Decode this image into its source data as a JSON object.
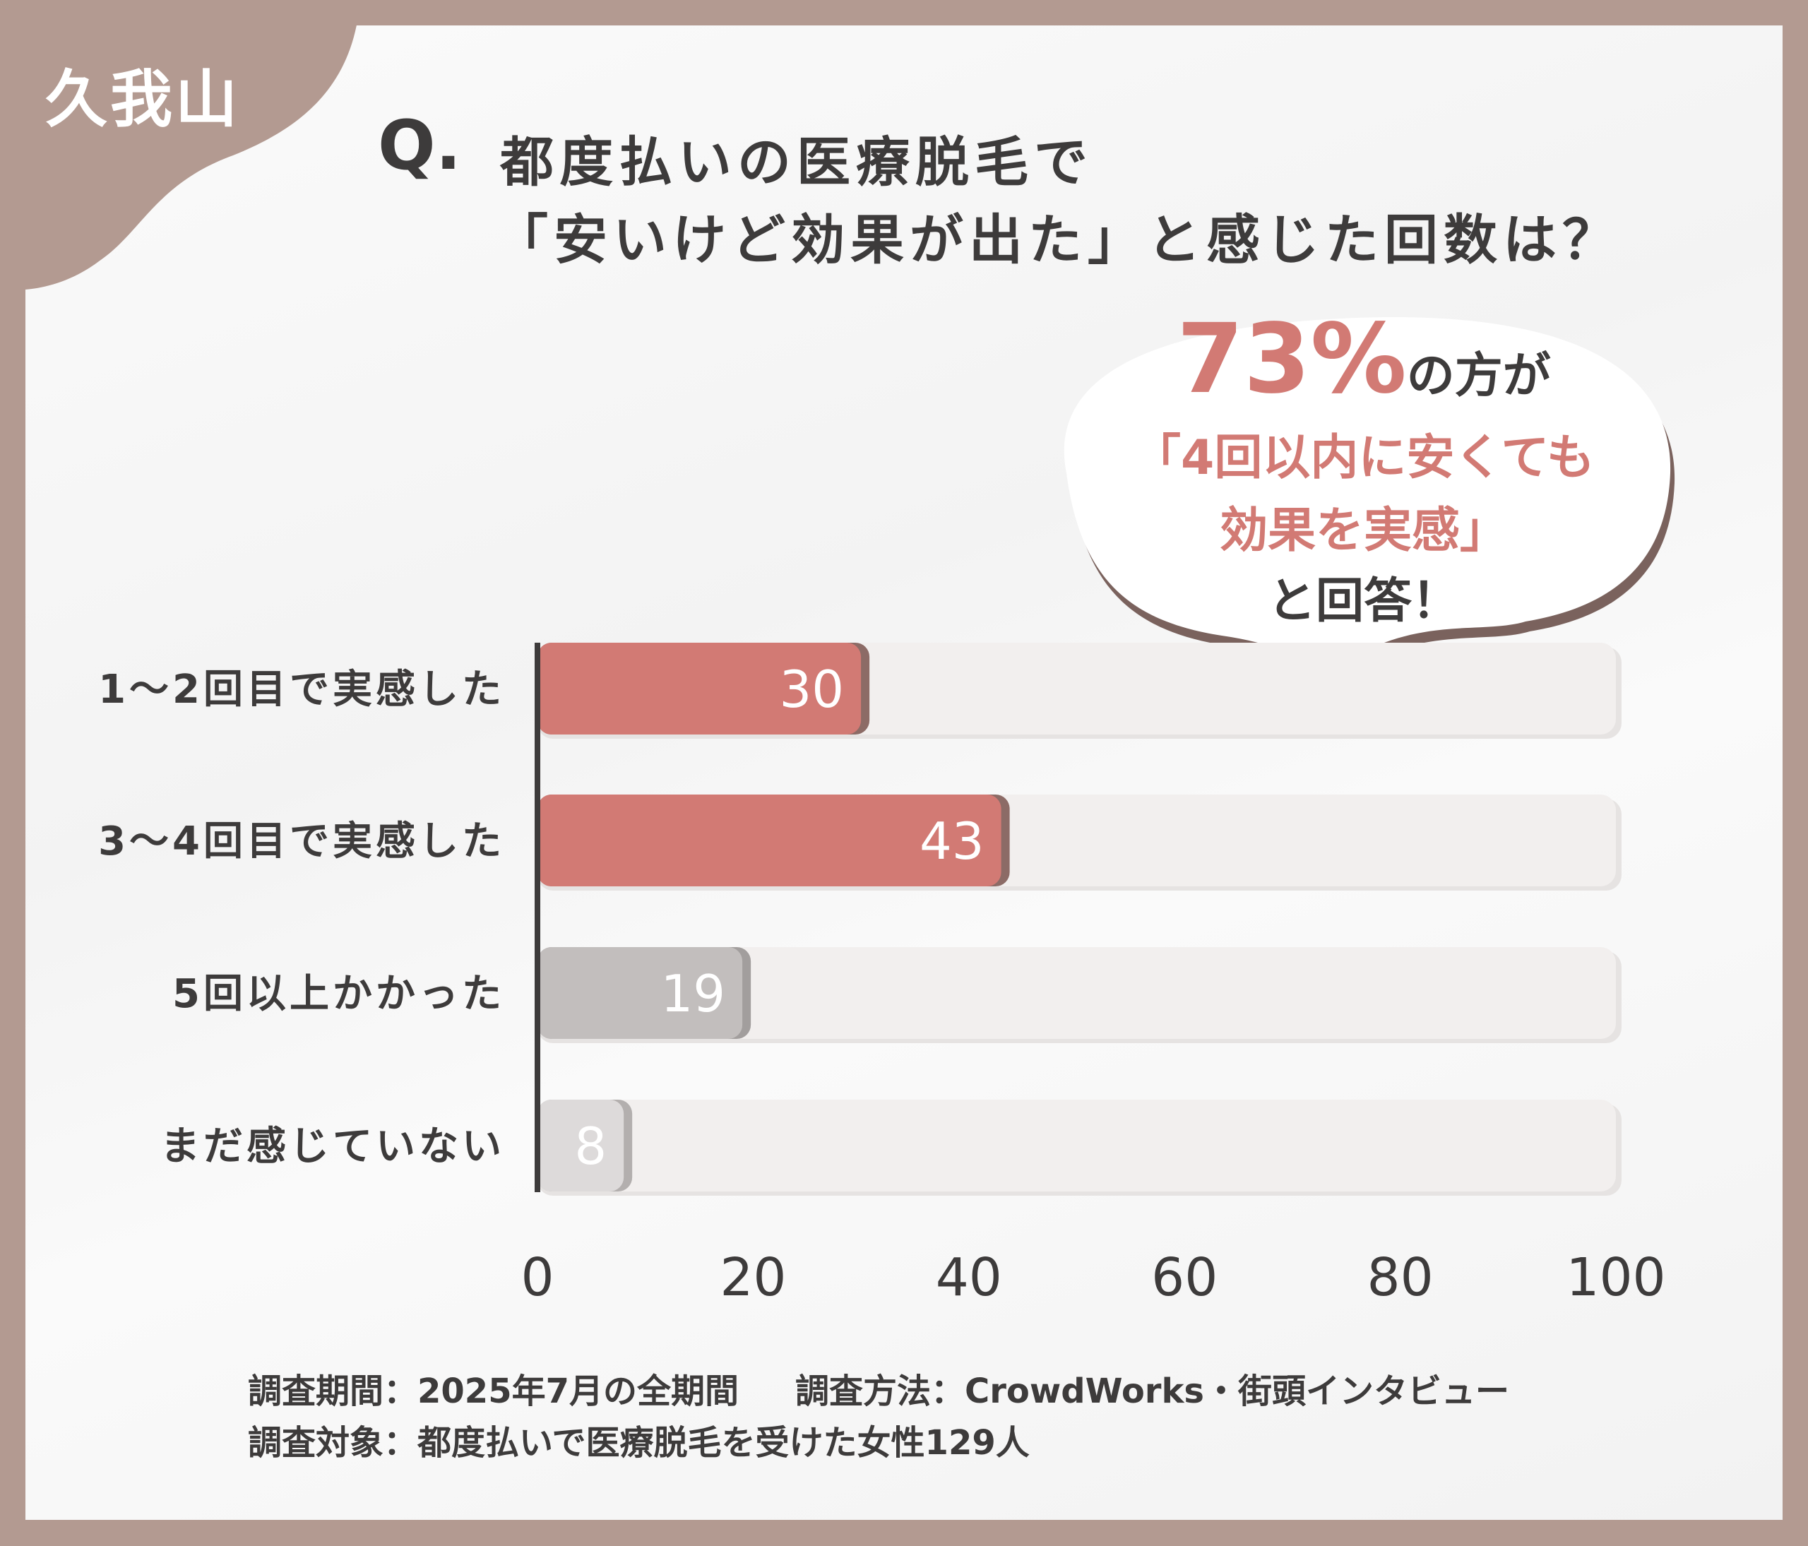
{
  "brand_label": "久我山",
  "title": {
    "q_mark": "Q.",
    "line1": "都度払いの医療脱毛で",
    "line2": "「安いけど効果が出た」と感じた回数は？"
  },
  "callout": {
    "percent": "73%",
    "suffix": "の方が",
    "line2": "「4回以内に安くても",
    "line3": "効果を実感」",
    "line4": "と回答！"
  },
  "chart_data": {
    "type": "bar",
    "orientation": "horizontal",
    "categories": [
      "1〜2回目で実感した",
      "3〜4回目で実感した",
      "5回以上かかった",
      "まだ感じていない"
    ],
    "values": [
      30,
      43,
      19,
      8
    ],
    "value_labels": [
      "30",
      "43",
      "19",
      "8"
    ],
    "xlim": [
      0,
      100
    ],
    "xticks": [
      "0",
      "20",
      "40",
      "60",
      "80",
      "100"
    ],
    "xtick_values": [
      0,
      20,
      40,
      60,
      80,
      100
    ],
    "bar_colors": [
      "#d27a74",
      "#d27a74",
      "#c2bebd",
      "#dddada"
    ],
    "shadow_colors": [
      "#8c6b66",
      "#8c6b66",
      "#a29e9d",
      "#b3afae"
    ],
    "track_color": "#f2efee",
    "grid": false
  },
  "footer": {
    "period": "調査期間：2025年7月の全期間",
    "method": "調査方法：CrowdWorks・街頭インタビュー",
    "target": "調査対象：都度払いで医療脱毛を受けた女性129人"
  }
}
